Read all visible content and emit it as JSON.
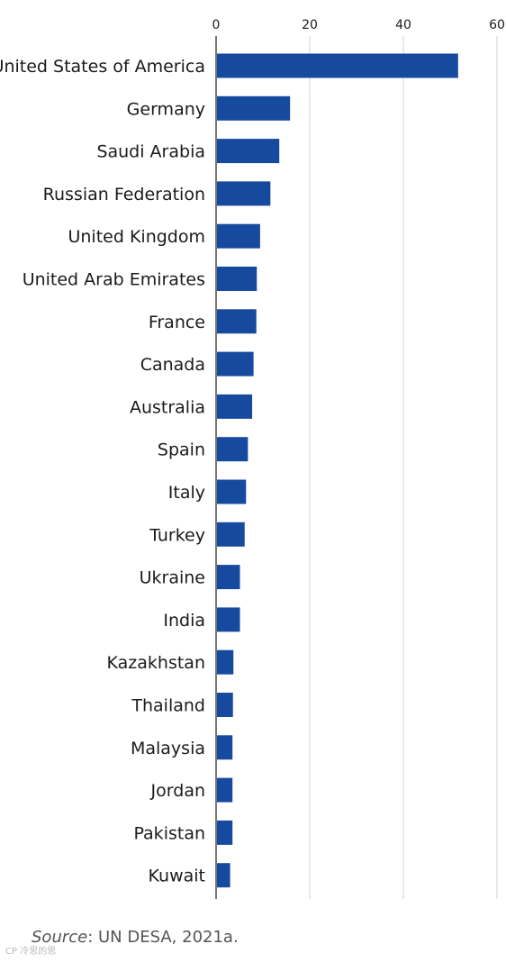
{
  "chart_data": {
    "type": "bar",
    "orientation": "horizontal",
    "categories": [
      "United States of America",
      "Germany",
      "Saudi Arabia",
      "Russian Federation",
      "United Kingdom",
      "United Arab Emirates",
      "France",
      "Canada",
      "Australia",
      "Spain",
      "Italy",
      "Turkey",
      "Ukraine",
      "India",
      "Kazakhstan",
      "Thailand",
      "Malaysia",
      "Jordan",
      "Pakistan",
      "Kuwait"
    ],
    "values": [
      51.7,
      15.8,
      13.5,
      11.6,
      9.4,
      8.7,
      8.6,
      8.0,
      7.7,
      6.8,
      6.4,
      6.1,
      5.1,
      5.1,
      3.7,
      3.6,
      3.5,
      3.5,
      3.5,
      3.0
    ],
    "xticks": [
      "0",
      "20",
      "40",
      "60"
    ],
    "xlim": [
      0,
      60
    ],
    "axis_position": "top",
    "grid": true,
    "bar_color": "#164a9e",
    "title": "",
    "xlabel": "",
    "ylabel": ""
  },
  "source": {
    "label": "Source",
    "text": ": UN DESA, 2021a."
  },
  "watermark": "CP 冷思的思"
}
